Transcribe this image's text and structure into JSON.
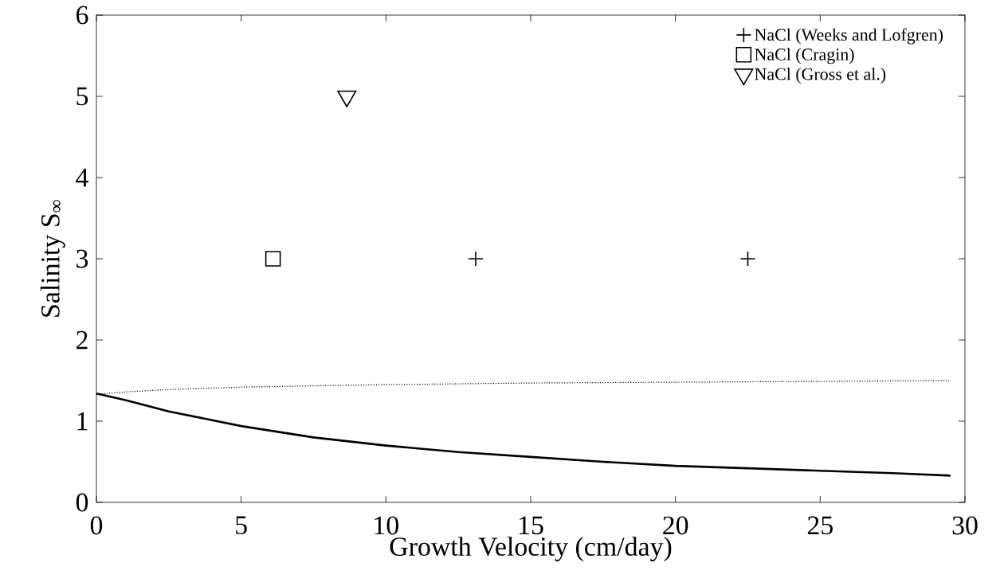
{
  "chart_data": {
    "type": "scatter",
    "xlabel": "Growth Velocity (cm/day)",
    "ylabel": "Salinity S$_{∞}$",
    "xlim": [
      0,
      30
    ],
    "ylim": [
      0,
      6
    ],
    "xticks": [
      0,
      5,
      10,
      15,
      20,
      25,
      30
    ],
    "yticks": [
      0,
      1,
      2,
      3,
      4,
      5,
      6
    ],
    "legend": "top right",
    "grid": false,
    "series": [
      {
        "name": "NaCl (Weeks and Lofgren)",
        "marker": "cross",
        "color": "#000000",
        "x": [
          13.1,
          22.5
        ],
        "values": [
          3,
          3
        ]
      },
      {
        "name": "NaCl (Cragin)",
        "marker": "square",
        "color": "#000000",
        "x": [
          6.1
        ],
        "values": [
          3
        ]
      },
      {
        "name": "NaCl (Gross et al.)",
        "marker": "triangle",
        "color": "#000000",
        "x": [
          8.65
        ],
        "values": [
          5
        ]
      },
      {
        "type": "line",
        "line_style": "solid",
        "marker": "none",
        "color": "#000000",
        "x": [
          0,
          1,
          2.5,
          5,
          7.5,
          10,
          12.5,
          15,
          17.5,
          20,
          22.5,
          25,
          27.5,
          29.5
        ],
        "values": [
          1.34,
          1.26,
          1.12,
          0.94,
          0.8,
          0.7,
          0.62,
          0.56,
          0.5,
          0.45,
          0.42,
          0.39,
          0.36,
          0.33
        ]
      },
      {
        "type": "line",
        "line_style": "dotted",
        "marker": "none",
        "color": "#000000",
        "x": [
          0,
          1,
          2.5,
          5,
          10,
          15,
          20,
          25,
          29.5
        ],
        "values": [
          1.33,
          1.36,
          1.39,
          1.42,
          1.45,
          1.47,
          1.48,
          1.49,
          1.5
        ]
      }
    ]
  }
}
